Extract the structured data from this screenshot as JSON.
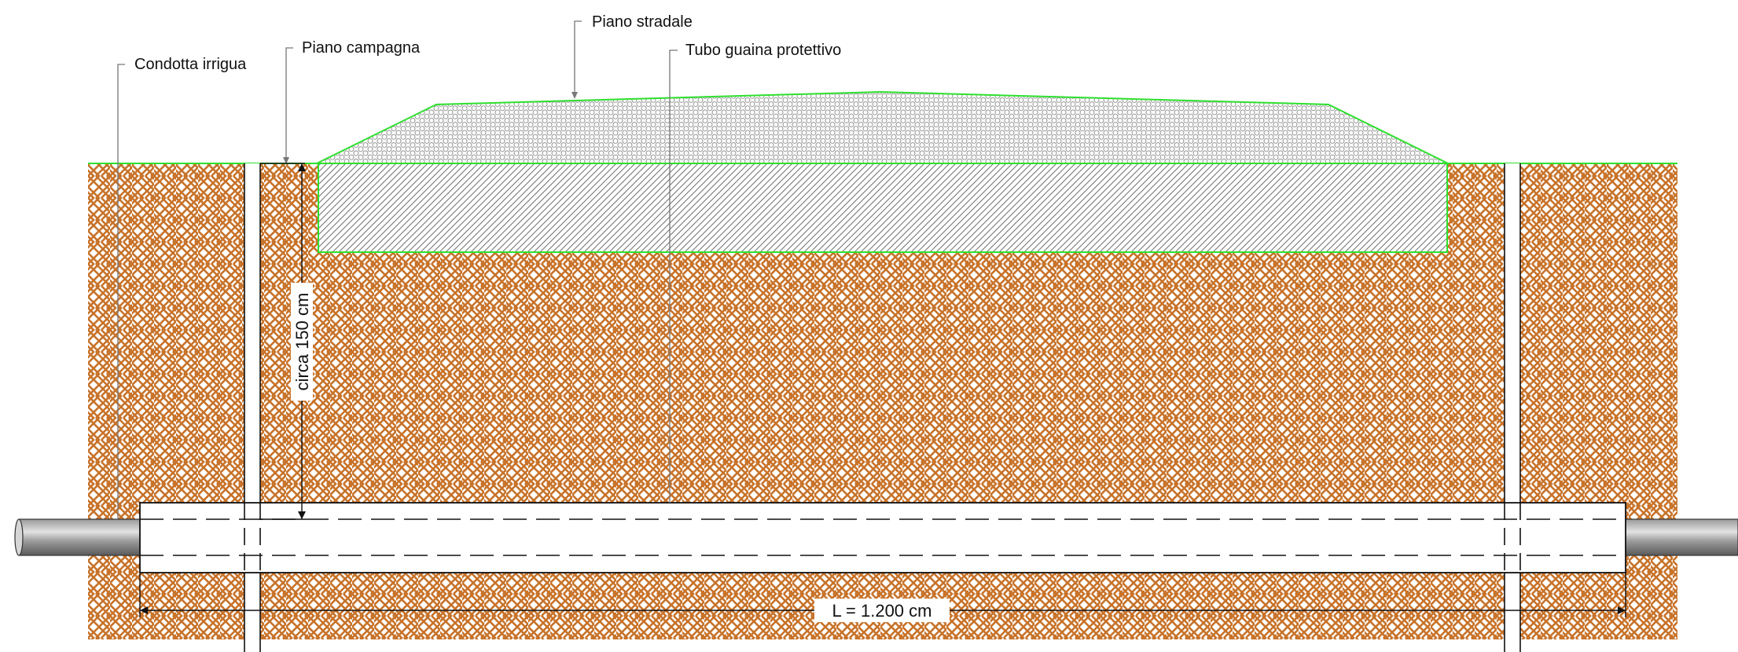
{
  "labels": {
    "condotta": "Condotta irrigua",
    "piano_campagna": "Piano campagna",
    "piano_stradale": "Piano stradale",
    "tubo_guaina": "Tubo guaina protettivo"
  },
  "dimensions": {
    "depth": "circa 150 cm",
    "length": "L = 1.200 cm"
  },
  "colors": {
    "soil_hatch": "#c8732a",
    "outline_green": "#2ee02e",
    "road_hatch": "#707070",
    "leader": "#777777",
    "pipe_dark": "#6e6e6e",
    "pipe_light": "#cfcfcf"
  }
}
